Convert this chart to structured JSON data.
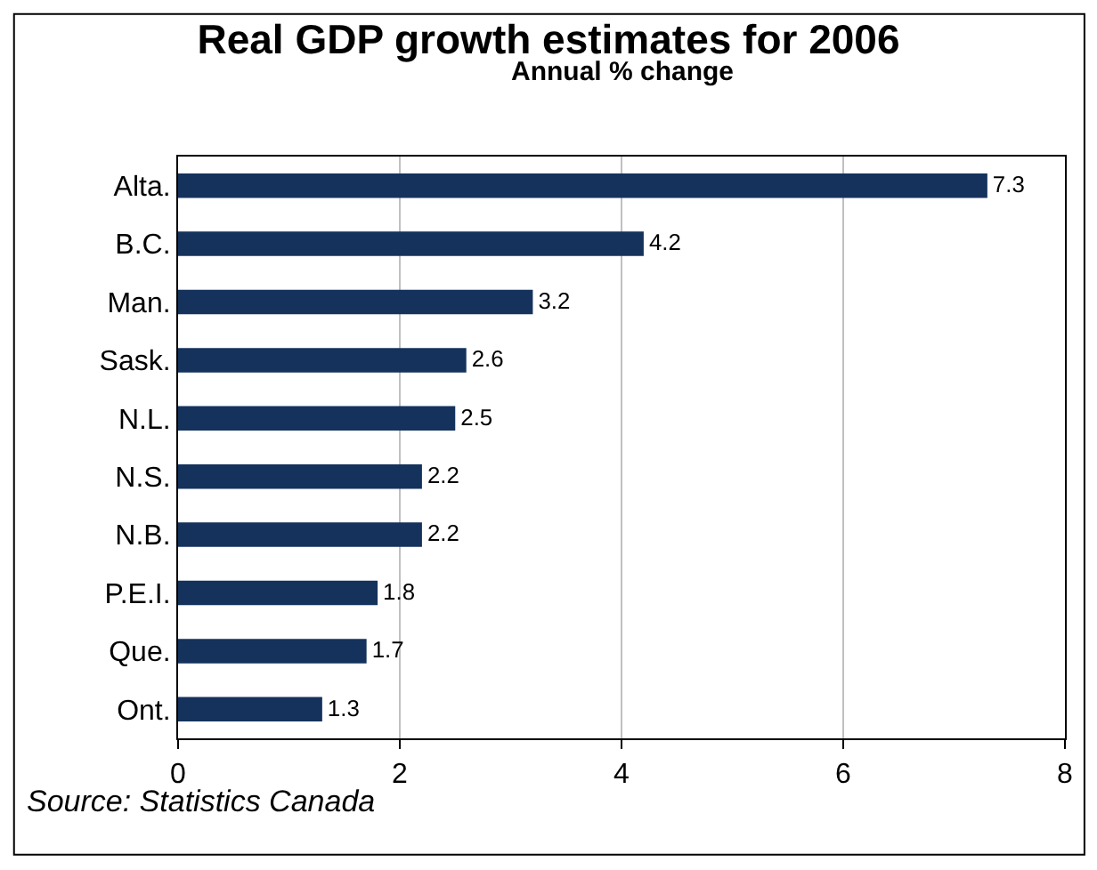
{
  "chart_data": {
    "type": "bar",
    "orientation": "horizontal",
    "title": "Real GDP growth estimates for 2006",
    "subtitle": "Annual % change",
    "categories": [
      "Alta.",
      "B.C.",
      "Man.",
      "Sask.",
      "N.L.",
      "N.S.",
      "N.B.",
      "P.E.I.",
      "Que.",
      "Ont."
    ],
    "values": [
      7.3,
      4.2,
      3.2,
      2.6,
      2.5,
      2.2,
      2.2,
      1.8,
      1.7,
      1.3
    ],
    "color": "#14325c",
    "xlim": [
      0,
      8
    ],
    "xticks": [
      0,
      2,
      4,
      6,
      8
    ],
    "grid": "x",
    "data_labels": true,
    "annotations": [
      "Source: Statistics Canada"
    ]
  }
}
